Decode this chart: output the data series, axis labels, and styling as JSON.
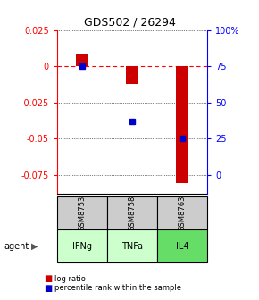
{
  "title": "GDS502 / 26294",
  "samples": [
    "GSM8753",
    "GSM8758",
    "GSM8763"
  ],
  "agents": [
    "IFNg",
    "TNFa",
    "IL4"
  ],
  "log_ratios": [
    0.008,
    -0.012,
    -0.081
  ],
  "percentile_ranks": [
    0.75,
    0.37,
    0.25
  ],
  "ymin": -0.088,
  "ymax": 0.025,
  "yticks_left": [
    0.025,
    0.0,
    -0.025,
    -0.05,
    -0.075
  ],
  "ytick_left_labels": [
    "0.025",
    "0",
    "-0.025",
    "-0.05",
    "-0.075"
  ],
  "yticks_right_vals": [
    0.025,
    0.0,
    -0.025,
    -0.05,
    -0.075
  ],
  "ytick_right_labels": [
    "100%",
    "75",
    "50",
    "25",
    "0"
  ],
  "bar_color": "#cc0000",
  "dot_color": "#0000cc",
  "sample_bg": "#cccccc",
  "agent_colors": [
    "#ccffcc",
    "#ccffcc",
    "#66dd66"
  ],
  "legend_labels": [
    "log ratio",
    "percentile rank within the sample"
  ]
}
